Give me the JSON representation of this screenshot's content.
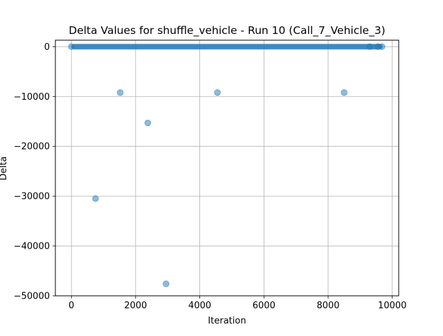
{
  "chart_data": {
    "type": "scatter",
    "title": "Delta Values for shuffle_vehicle - Run 10 (Call_7_Vehicle_3)",
    "xlabel": "Iteration",
    "ylabel": "Delta",
    "xlim": [
      -500,
      10200
    ],
    "ylim": [
      -50000,
      1300
    ],
    "xticks": [
      0,
      2000,
      4000,
      6000,
      8000,
      10000
    ],
    "xtick_labels": [
      "0",
      "2000",
      "4000",
      "6000",
      "8000",
      "10000"
    ],
    "yticks": [
      0,
      -10000,
      -20000,
      -30000,
      -40000,
      -50000
    ],
    "ytick_labels": [
      "0",
      "−10000",
      "−20000",
      "−30000",
      "−40000",
      "−50000"
    ],
    "grid": true,
    "legend": "none",
    "marker_color": "#1f77b4",
    "marker_alpha": 0.5,
    "zero_band": {
      "y": 0,
      "x_start": 0,
      "x_end": 9700
    },
    "x": [
      0,
      750,
      1520,
      2380,
      2950,
      4550,
      8500,
      9300,
      9550,
      9680
    ],
    "y": [
      0,
      -30500,
      -9200,
      -15300,
      -47600,
      -9200,
      -9200,
      0,
      0,
      0
    ]
  }
}
